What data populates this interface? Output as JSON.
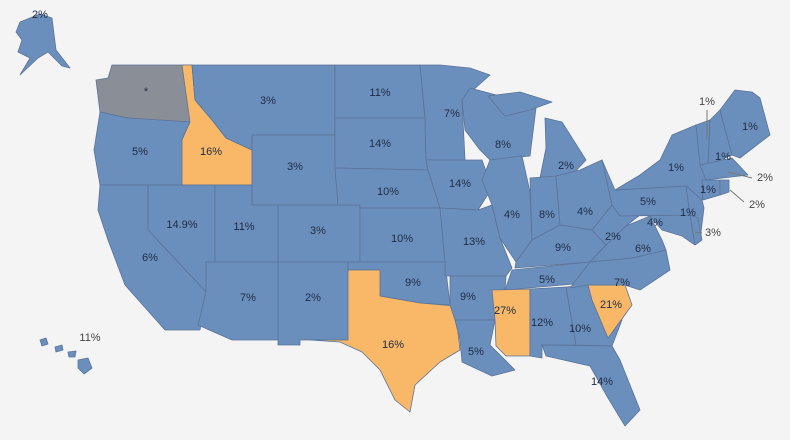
{
  "colors": {
    "low": "#6b8fbd",
    "high": "#f9b868",
    "no_data": "#8a8e96",
    "background": "#f4f4f4"
  },
  "states": {
    "AK": {
      "label": "2%",
      "category": "low"
    },
    "WA": {
      "label": "*",
      "category": "no_data"
    },
    "OR": {
      "label": "5%",
      "category": "low"
    },
    "ID": {
      "label": "16%",
      "category": "high"
    },
    "MT": {
      "label": "3%",
      "category": "low"
    },
    "WY": {
      "label": "3%",
      "category": "low"
    },
    "NV": {
      "label": "14.9%",
      "category": "low"
    },
    "CA": {
      "label": "6%",
      "category": "low"
    },
    "UT": {
      "label": "11%",
      "category": "low"
    },
    "CO": {
      "label": "3%",
      "category": "low"
    },
    "AZ": {
      "label": "7%",
      "category": "low"
    },
    "NM": {
      "label": "2%",
      "category": "low"
    },
    "ND": {
      "label": "11%",
      "category": "low"
    },
    "SD": {
      "label": "14%",
      "category": "low"
    },
    "NE": {
      "label": "10%",
      "category": "low"
    },
    "KS": {
      "label": "10%",
      "category": "low"
    },
    "OK": {
      "label": "9%",
      "category": "low"
    },
    "TX": {
      "label": "16%",
      "category": "high"
    },
    "MN": {
      "label": "7%",
      "category": "low"
    },
    "IA": {
      "label": "14%",
      "category": "low"
    },
    "MO": {
      "label": "13%",
      "category": "low"
    },
    "AR": {
      "label": "9%",
      "category": "low"
    },
    "LA": {
      "label": "5%",
      "category": "low"
    },
    "WI": {
      "label": "8%",
      "category": "low"
    },
    "IL": {
      "label": "4%",
      "category": "low"
    },
    "MI": {
      "label": "2%",
      "category": "low"
    },
    "IN": {
      "label": "8%",
      "category": "low"
    },
    "OH": {
      "label": "4%",
      "category": "low"
    },
    "KY": {
      "label": "9%",
      "category": "low"
    },
    "TN": {
      "label": "5%",
      "category": "low"
    },
    "MS": {
      "label": "27%",
      "category": "high"
    },
    "AL": {
      "label": "12%",
      "category": "low"
    },
    "GA": {
      "label": "10%",
      "category": "low"
    },
    "FL": {
      "label": "14%",
      "category": "low"
    },
    "SC": {
      "label": "21%",
      "category": "high"
    },
    "NC": {
      "label": "7%",
      "category": "low"
    },
    "VA": {
      "label": "6%",
      "category": "low"
    },
    "WV": {
      "label": "2%",
      "category": "low"
    },
    "MD": {
      "label": "4%",
      "category": "low"
    },
    "PA": {
      "label": "5%",
      "category": "low"
    },
    "NY": {
      "label": "1%",
      "category": "low"
    },
    "NJ": {
      "label": "1%",
      "category": "low"
    },
    "VT": {
      "label": "1%",
      "category": "low"
    },
    "NH": {
      "label": "1%",
      "category": "low"
    },
    "ME": {
      "label": "1%",
      "category": "low"
    },
    "MA": {
      "label": "2%",
      "category": "low"
    },
    "CT": {
      "label": "1%",
      "category": "low"
    },
    "RI": {
      "label": "2%",
      "category": "low"
    },
    "DE": {
      "label": "3%",
      "category": "low"
    },
    "HI": {
      "label": "11%",
      "category": "low"
    }
  }
}
